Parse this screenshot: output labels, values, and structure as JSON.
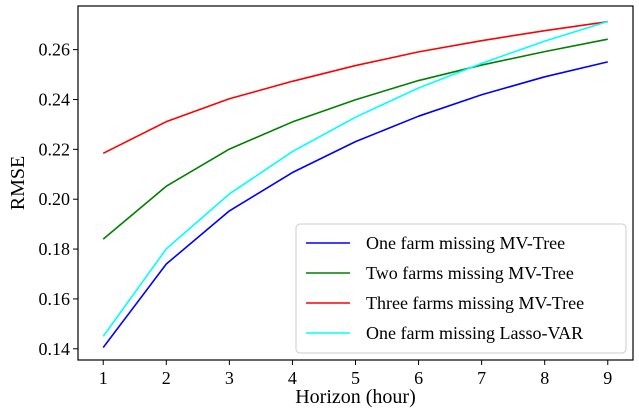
{
  "chart_data": {
    "type": "line",
    "title": "",
    "xlabel": "Horizon (hour)",
    "ylabel": "RMSE",
    "x": [
      1,
      2,
      3,
      4,
      5,
      6,
      7,
      8,
      9
    ],
    "xticks": [
      "1",
      "2",
      "3",
      "4",
      "5",
      "6",
      "7",
      "8",
      "9"
    ],
    "yticks": [
      "0.14",
      "0.16",
      "0.18",
      "0.20",
      "0.22",
      "0.24",
      "0.26"
    ],
    "xlim": [
      0.6,
      9.4
    ],
    "ylim": [
      0.1355,
      0.2775
    ],
    "grid": false,
    "legend_position": "lower-right",
    "series": [
      {
        "name": "One farm missing MV-Tree",
        "color": "#0000ff",
        "values": [
          0.1405,
          0.174,
          0.1953,
          0.2107,
          0.2231,
          0.2333,
          0.2419,
          0.2491,
          0.2551
        ]
      },
      {
        "name": "Two farms missing MV-Tree",
        "color": "#008000",
        "values": [
          0.184,
          0.2052,
          0.2201,
          0.231,
          0.2399,
          0.2476,
          0.2538,
          0.2592,
          0.2642
        ]
      },
      {
        "name": "Three farms missing MV-Tree",
        "color": "#ff0000",
        "values": [
          0.2184,
          0.2311,
          0.2403,
          0.2473,
          0.2536,
          0.2591,
          0.2636,
          0.2676,
          0.2712
        ]
      },
      {
        "name": "One farm missing Lasso-VAR",
        "color": "#00ffff",
        "values": [
          0.145,
          0.1801,
          0.2021,
          0.2191,
          0.2329,
          0.2446,
          0.2545,
          0.2634,
          0.2713
        ]
      }
    ]
  }
}
